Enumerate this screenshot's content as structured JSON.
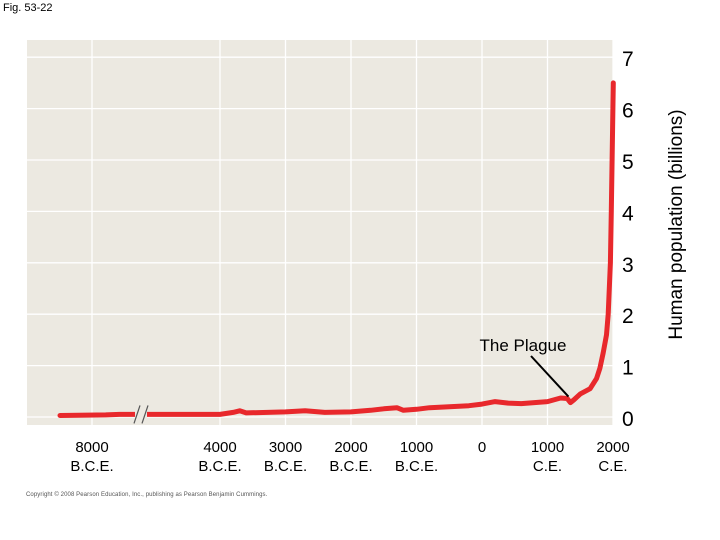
{
  "figure_label": "Fig. 53-22",
  "copyright": "Copyright © 2008 Pearson Education, Inc., publishing as Pearson Benjamin Cummings.",
  "chart_data": {
    "type": "line",
    "title": "",
    "xlabel": "",
    "ylabel": "Human population (billions)",
    "ylim": [
      0,
      7
    ],
    "y_ticks": [
      0,
      1,
      2,
      3,
      4,
      5,
      6,
      7
    ],
    "x_ticks": [
      {
        "year": -8000,
        "line1": "8000",
        "line2": "B.C.E."
      },
      {
        "year": -4000,
        "line1": "4000",
        "line2": "B.C.E."
      },
      {
        "year": -3000,
        "line1": "3000",
        "line2": "B.C.E."
      },
      {
        "year": -2000,
        "line1": "2000",
        "line2": "B.C.E."
      },
      {
        "year": -1000,
        "line1": "1000",
        "line2": "B.C.E."
      },
      {
        "year": 0,
        "line1": "0",
        "line2": ""
      },
      {
        "year": 1000,
        "line1": "1000",
        "line2": "C.E."
      },
      {
        "year": 2000,
        "line1": "2000",
        "line2": "C.E."
      }
    ],
    "axis_break": "between 8000 B.C.E. and 4000 B.C.E.",
    "grid": true,
    "background_color": "#ece9e1",
    "grid_color": "#ffffff",
    "line_color": "#e8282c",
    "annotation": {
      "text": "The Plague",
      "year": 1350,
      "value": 0.3
    },
    "series": [
      {
        "points": [
          [
            -9000,
            0.03
          ],
          [
            -7000,
            0.04
          ],
          [
            -6000,
            0.05
          ],
          [
            -4500,
            0.05
          ],
          [
            -4000,
            0.05
          ],
          [
            -3800,
            0.09
          ],
          [
            -3700,
            0.12
          ],
          [
            -3600,
            0.08
          ],
          [
            -3000,
            0.1
          ],
          [
            -2700,
            0.12
          ],
          [
            -2400,
            0.09
          ],
          [
            -2000,
            0.1
          ],
          [
            -1700,
            0.13
          ],
          [
            -1500,
            0.16
          ],
          [
            -1300,
            0.18
          ],
          [
            -1200,
            0.13
          ],
          [
            -1000,
            0.15
          ],
          [
            -800,
            0.18
          ],
          [
            -500,
            0.2
          ],
          [
            -200,
            0.22
          ],
          [
            0,
            0.25
          ],
          [
            200,
            0.3
          ],
          [
            400,
            0.27
          ],
          [
            600,
            0.26
          ],
          [
            800,
            0.28
          ],
          [
            1000,
            0.3
          ],
          [
            1200,
            0.37
          ],
          [
            1300,
            0.36
          ],
          [
            1350,
            0.28
          ],
          [
            1400,
            0.33
          ],
          [
            1500,
            0.45
          ],
          [
            1650,
            0.55
          ],
          [
            1750,
            0.75
          ],
          [
            1800,
            0.95
          ],
          [
            1850,
            1.25
          ],
          [
            1900,
            1.6
          ],
          [
            1927,
            2.0
          ],
          [
            1960,
            3.0
          ],
          [
            1974,
            4.0
          ],
          [
            1987,
            5.0
          ],
          [
            1999,
            6.0
          ],
          [
            2005,
            6.5
          ]
        ]
      }
    ]
  }
}
